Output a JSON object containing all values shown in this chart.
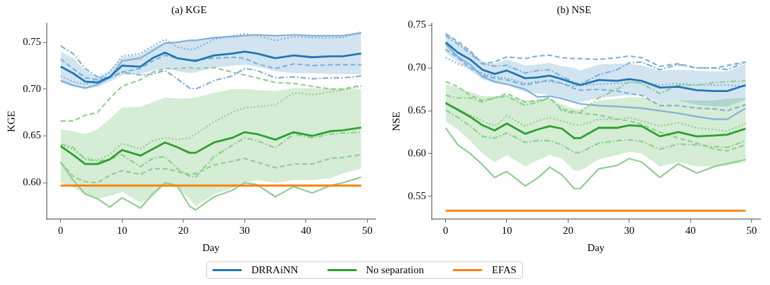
{
  "chart_data": [
    {
      "type": "line",
      "title": "(a) KGE",
      "xlabel": "Day",
      "ylabel": "KGE",
      "legend": "bottom",
      "grid": false,
      "x": [
        0,
        2,
        4,
        6,
        8,
        10,
        13,
        15,
        17,
        19,
        21,
        22,
        25,
        28,
        30,
        32,
        35,
        38,
        41,
        44,
        46,
        49
      ],
      "xlim": [
        -2.3,
        51.3
      ],
      "xticks": [
        0,
        10,
        20,
        30,
        40,
        50
      ],
      "ylim": [
        0.561,
        0.77
      ],
      "yticks": [
        {
          "value": 0.6,
          "label": "0.60"
        },
        {
          "value": 0.65,
          "label": "0.65"
        },
        {
          "value": 0.7,
          "label": "0.70"
        },
        {
          "value": 0.75,
          "label": "0.75"
        }
      ],
      "series": [
        {
          "color": "#7fb1d9",
          "line_style": "solid",
          "values": [
            0.709,
            0.704,
            0.701,
            0.705,
            0.712,
            0.73,
            0.733,
            0.741,
            0.749,
            0.75,
            0.752,
            0.752,
            0.755,
            0.756,
            0.757,
            0.758,
            0.757,
            0.758,
            0.757,
            0.757,
            0.757,
            0.76
          ]
        },
        {
          "color": "#7fb1d9",
          "line_style": "dotted",
          "values": [
            0.714,
            0.708,
            0.705,
            0.71,
            0.718,
            0.735,
            0.738,
            0.746,
            0.753,
            0.745,
            0.742,
            0.743,
            0.753,
            0.757,
            0.759,
            0.757,
            0.752,
            0.756,
            0.755,
            0.755,
            0.755,
            0.761
          ]
        },
        {
          "color": "#7fb1d9",
          "line_style": "dashed",
          "values": [
            0.732,
            0.722,
            0.712,
            0.71,
            0.712,
            0.718,
            0.722,
            0.73,
            0.736,
            0.733,
            0.731,
            0.731,
            0.733,
            0.734,
            0.733,
            0.727,
            0.722,
            0.727,
            0.725,
            0.726,
            0.726,
            0.726
          ]
        },
        {
          "color": "#7fb1d9",
          "line_style": "dashdot",
          "values": [
            0.746,
            0.738,
            0.722,
            0.713,
            0.712,
            0.718,
            0.715,
            0.716,
            0.72,
            0.711,
            0.701,
            0.7,
            0.709,
            0.714,
            0.722,
            0.72,
            0.712,
            0.713,
            0.711,
            0.712,
            0.712,
            0.714
          ]
        },
        {
          "color": "#8fcf8f",
          "line_style": "solid",
          "values": [
            0.622,
            0.603,
            0.588,
            0.583,
            0.574,
            0.584,
            0.573,
            0.588,
            0.6,
            0.597,
            0.575,
            0.571,
            0.585,
            0.592,
            0.6,
            0.598,
            0.585,
            0.596,
            0.589,
            0.597,
            0.6,
            0.606
          ]
        },
        {
          "color": "#8fcf8f",
          "line_style": "dashed",
          "values": [
            0.666,
            0.666,
            0.672,
            0.675,
            0.69,
            0.703,
            0.71,
            0.718,
            0.722,
            0.722,
            0.723,
            0.722,
            0.723,
            0.718,
            0.715,
            0.712,
            0.707,
            0.706,
            0.703,
            0.7,
            0.7,
            0.704
          ]
        },
        {
          "color": "#8fcf8f",
          "line_style": "dotted",
          "values": [
            0.64,
            0.636,
            0.626,
            0.624,
            0.63,
            0.642,
            0.636,
            0.645,
            0.648,
            0.646,
            0.648,
            0.652,
            0.665,
            0.675,
            0.68,
            0.681,
            0.683,
            0.696,
            0.694,
            0.697,
            0.699,
            0.703
          ]
        },
        {
          "color": "#8fcf8f",
          "line_style": "dashdot",
          "values": [
            0.641,
            0.638,
            0.625,
            0.623,
            0.625,
            0.63,
            0.617,
            0.626,
            0.628,
            0.615,
            0.607,
            0.606,
            0.628,
            0.64,
            0.648,
            0.645,
            0.637,
            0.652,
            0.648,
            0.652,
            0.653,
            0.654
          ]
        },
        {
          "color": "#8fcf8f",
          "line_style": "dashed",
          "values": [
            0.622,
            0.607,
            0.601,
            0.6,
            0.608,
            0.613,
            0.609,
            0.615,
            0.615,
            0.612,
            0.609,
            0.61,
            0.619,
            0.623,
            0.626,
            0.622,
            0.616,
            0.62,
            0.62,
            0.626,
            0.627,
            0.63
          ]
        },
        {
          "name": "DRRAiNN",
          "color": "#1f77b4",
          "line_style": "solid",
          "values": [
            0.724,
            0.717,
            0.708,
            0.707,
            0.713,
            0.725,
            0.724,
            0.733,
            0.739,
            0.733,
            0.731,
            0.73,
            0.736,
            0.738,
            0.74,
            0.738,
            0.733,
            0.736,
            0.734,
            0.735,
            0.735,
            0.738
          ],
          "lower": [
            0.707,
            0.703,
            0.7,
            0.702,
            0.708,
            0.715,
            0.716,
            0.72,
            0.722,
            0.719,
            0.717,
            0.718,
            0.723,
            0.725,
            0.726,
            0.724,
            0.719,
            0.717,
            0.717,
            0.716,
            0.716,
            0.716
          ],
          "upper": [
            0.74,
            0.733,
            0.72,
            0.713,
            0.72,
            0.734,
            0.737,
            0.745,
            0.75,
            0.75,
            0.752,
            0.752,
            0.755,
            0.757,
            0.758,
            0.758,
            0.757,
            0.758,
            0.757,
            0.757,
            0.757,
            0.76
          ]
        },
        {
          "name": "No separation",
          "color": "#2ca02c",
          "line_style": "solid",
          "values": [
            0.639,
            0.63,
            0.62,
            0.62,
            0.625,
            0.635,
            0.629,
            0.636,
            0.643,
            0.638,
            0.632,
            0.632,
            0.643,
            0.648,
            0.654,
            0.652,
            0.646,
            0.654,
            0.65,
            0.655,
            0.656,
            0.659
          ],
          "lower": [
            0.6,
            0.595,
            0.588,
            0.583,
            0.586,
            0.59,
            0.579,
            0.585,
            0.598,
            0.594,
            0.583,
            0.575,
            0.588,
            0.594,
            0.6,
            0.603,
            0.6,
            0.603,
            0.603,
            0.605,
            0.61,
            0.615
          ],
          "upper": [
            0.657,
            0.655,
            0.652,
            0.657,
            0.668,
            0.68,
            0.681,
            0.686,
            0.691,
            0.69,
            0.69,
            0.691,
            0.696,
            0.7,
            0.7,
            0.699,
            0.698,
            0.701,
            0.701,
            0.701,
            0.701,
            0.7
          ]
        },
        {
          "name": "EFAS",
          "color": "#ff7f0e",
          "line_style": "solid",
          "values": [
            0.597,
            0.597,
            0.597,
            0.597,
            0.597,
            0.597,
            0.597,
            0.597,
            0.597,
            0.597,
            0.597,
            0.597,
            0.597,
            0.597,
            0.597,
            0.597,
            0.597,
            0.597,
            0.597,
            0.597,
            0.597,
            0.597
          ]
        }
      ]
    },
    {
      "type": "line",
      "title": "(b) NSE",
      "xlabel": "Day",
      "ylabel": "NSE",
      "legend": "bottom",
      "grid": false,
      "x": [
        0,
        2,
        4,
        6,
        8,
        10,
        13,
        15,
        17,
        19,
        21,
        22,
        25,
        28,
        30,
        32,
        35,
        38,
        41,
        44,
        46,
        49
      ],
      "xlim": [
        -2.3,
        51.4
      ],
      "xticks": [
        0,
        10,
        20,
        30,
        40,
        50
      ],
      "ylim": [
        0.523,
        0.752
      ],
      "yticks": [
        {
          "value": 0.55,
          "label": "0.55"
        },
        {
          "value": 0.6,
          "label": "0.60"
        },
        {
          "value": 0.65,
          "label": "0.65"
        },
        {
          "value": 0.7,
          "label": "0.70"
        },
        {
          "value": 0.75,
          "label": "0.75"
        }
      ],
      "series": [
        {
          "color": "#7fb1d9",
          "line_style": "solid",
          "values": [
            0.728,
            0.713,
            0.704,
            0.69,
            0.684,
            0.681,
            0.675,
            0.666,
            0.667,
            0.664,
            0.66,
            0.658,
            0.656,
            0.655,
            0.654,
            0.653,
            0.65,
            0.647,
            0.643,
            0.64,
            0.64,
            0.653
          ]
        },
        {
          "color": "#7fb1d9",
          "line_style": "dashed",
          "values": [
            0.74,
            0.731,
            0.72,
            0.705,
            0.707,
            0.713,
            0.711,
            0.714,
            0.715,
            0.712,
            0.711,
            0.711,
            0.71,
            0.712,
            0.714,
            0.712,
            0.702,
            0.705,
            0.7,
            0.7,
            0.703,
            0.707
          ]
        },
        {
          "color": "#7fb1d9",
          "line_style": "dashdot",
          "values": [
            0.738,
            0.728,
            0.717,
            0.705,
            0.702,
            0.703,
            0.694,
            0.697,
            0.698,
            0.69,
            0.683,
            0.681,
            0.692,
            0.698,
            0.706,
            0.707,
            0.698,
            0.704,
            0.7,
            0.7,
            0.698,
            0.707
          ]
        },
        {
          "color": "#7fb1d9",
          "line_style": "dotted",
          "values": [
            0.712,
            0.705,
            0.7,
            0.694,
            0.69,
            0.688,
            0.682,
            0.684,
            0.684,
            0.682,
            0.679,
            0.68,
            0.681,
            0.682,
            0.683,
            0.683,
            0.68,
            0.682,
            0.68,
            0.68,
            0.68,
            0.678
          ]
        },
        {
          "color": "#7fb1d9",
          "line_style": "dashed",
          "values": [
            0.722,
            0.712,
            0.7,
            0.692,
            0.688,
            0.686,
            0.68,
            0.683,
            0.686,
            0.682,
            0.676,
            0.674,
            0.675,
            0.673,
            0.67,
            0.668,
            0.656,
            0.656,
            0.653,
            0.652,
            0.65,
            0.657
          ]
        },
        {
          "color": "#8fcf8f",
          "line_style": "solid",
          "values": [
            0.63,
            0.61,
            0.6,
            0.587,
            0.572,
            0.579,
            0.562,
            0.571,
            0.584,
            0.575,
            0.559,
            0.559,
            0.582,
            0.586,
            0.594,
            0.59,
            0.572,
            0.588,
            0.577,
            0.585,
            0.588,
            0.593
          ]
        },
        {
          "color": "#8fcf8f",
          "line_style": "dashed",
          "values": [
            0.684,
            0.678,
            0.668,
            0.662,
            0.665,
            0.67,
            0.66,
            0.662,
            0.665,
            0.652,
            0.649,
            0.647,
            0.645,
            0.64,
            0.638,
            0.634,
            0.625,
            0.618,
            0.612,
            0.605,
            0.603,
            0.61
          ]
        },
        {
          "color": "#8fcf8f",
          "line_style": "dashdot",
          "values": [
            0.668,
            0.665,
            0.665,
            0.66,
            0.665,
            0.667,
            0.656,
            0.66,
            0.665,
            0.65,
            0.647,
            0.648,
            0.665,
            0.675,
            0.684,
            0.682,
            0.67,
            0.68,
            0.68,
            0.683,
            0.684,
            0.685
          ]
        },
        {
          "color": "#8fcf8f",
          "line_style": "dotted",
          "values": [
            0.66,
            0.652,
            0.645,
            0.638,
            0.632,
            0.644,
            0.632,
            0.638,
            0.642,
            0.638,
            0.634,
            0.633,
            0.64,
            0.64,
            0.642,
            0.638,
            0.632,
            0.636,
            0.63,
            0.628,
            0.626,
            0.635
          ]
        },
        {
          "color": "#8fcf8f",
          "line_style": "dashdot",
          "values": [
            0.651,
            0.642,
            0.632,
            0.62,
            0.618,
            0.624,
            0.613,
            0.615,
            0.615,
            0.61,
            0.601,
            0.601,
            0.612,
            0.615,
            0.616,
            0.614,
            0.605,
            0.611,
            0.61,
            0.608,
            0.607,
            0.615
          ]
        },
        {
          "name": "DRRAiNN",
          "color": "#1f77b4",
          "line_style": "solid",
          "values": [
            0.73,
            0.718,
            0.71,
            0.698,
            0.693,
            0.697,
            0.688,
            0.689,
            0.691,
            0.687,
            0.682,
            0.68,
            0.686,
            0.685,
            0.687,
            0.685,
            0.677,
            0.678,
            0.674,
            0.673,
            0.673,
            0.68
          ],
          "lower": [
            0.718,
            0.707,
            0.697,
            0.687,
            0.682,
            0.68,
            0.672,
            0.67,
            0.668,
            0.664,
            0.66,
            0.66,
            0.665,
            0.667,
            0.668,
            0.668,
            0.66,
            0.662,
            0.657,
            0.655,
            0.655,
            0.663
          ],
          "upper": [
            0.742,
            0.73,
            0.72,
            0.708,
            0.705,
            0.71,
            0.703,
            0.704,
            0.706,
            0.702,
            0.7,
            0.697,
            0.704,
            0.705,
            0.705,
            0.703,
            0.697,
            0.698,
            0.697,
            0.696,
            0.696,
            0.705
          ]
        },
        {
          "name": "No separation",
          "color": "#2ca02c",
          "line_style": "solid",
          "values": [
            0.659,
            0.651,
            0.643,
            0.633,
            0.627,
            0.635,
            0.623,
            0.628,
            0.632,
            0.629,
            0.618,
            0.618,
            0.63,
            0.63,
            0.633,
            0.632,
            0.62,
            0.625,
            0.62,
            0.621,
            0.622,
            0.629
          ],
          "lower": [
            0.638,
            0.628,
            0.615,
            0.6,
            0.59,
            0.598,
            0.585,
            0.592,
            0.598,
            0.594,
            0.58,
            0.58,
            0.593,
            0.598,
            0.602,
            0.6,
            0.585,
            0.59,
            0.585,
            0.585,
            0.586,
            0.59
          ],
          "upper": [
            0.681,
            0.677,
            0.672,
            0.667,
            0.667,
            0.668,
            0.662,
            0.663,
            0.664,
            0.657,
            0.652,
            0.652,
            0.662,
            0.664,
            0.666,
            0.666,
            0.66,
            0.662,
            0.662,
            0.662,
            0.664,
            0.665
          ]
        },
        {
          "name": "EFAS",
          "color": "#ff7f0e",
          "line_style": "solid",
          "values": [
            0.533,
            0.533,
            0.533,
            0.533,
            0.533,
            0.533,
            0.533,
            0.533,
            0.533,
            0.533,
            0.533,
            0.533,
            0.533,
            0.533,
            0.533,
            0.533,
            0.533,
            0.533,
            0.533,
            0.533,
            0.533,
            0.533
          ]
        }
      ]
    }
  ]
}
